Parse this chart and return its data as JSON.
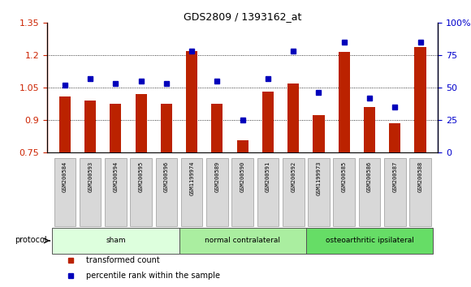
{
  "title": "GDS2809 / 1393162_at",
  "samples": [
    "GSM200584",
    "GSM200593",
    "GSM200594",
    "GSM200595",
    "GSM200596",
    "GSM1199974",
    "GSM200589",
    "GSM200590",
    "GSM200591",
    "GSM200592",
    "GSM1199973",
    "GSM200585",
    "GSM200586",
    "GSM200587",
    "GSM200588"
  ],
  "transformed_count": [
    1.01,
    0.99,
    0.975,
    1.02,
    0.975,
    1.22,
    0.975,
    0.805,
    1.03,
    1.07,
    0.92,
    1.215,
    0.96,
    0.885,
    1.24
  ],
  "percentile_rank": [
    52,
    57,
    53,
    55,
    53,
    78,
    55,
    25,
    57,
    78,
    46,
    85,
    42,
    35,
    85
  ],
  "ylim_left": [
    0.75,
    1.35
  ],
  "ylim_right": [
    0,
    100
  ],
  "yticks_left": [
    0.75,
    0.9,
    1.05,
    1.2,
    1.35
  ],
  "yticks_right": [
    0,
    25,
    50,
    75,
    100
  ],
  "ytick_labels_right": [
    "0",
    "25",
    "50",
    "75",
    "100%"
  ],
  "bar_color": "#bb2200",
  "dot_color": "#0000bb",
  "groups": [
    {
      "label": "sham",
      "start": 0,
      "end": 5,
      "color": "#ddffdd"
    },
    {
      "label": "normal contralateral",
      "start": 5,
      "end": 10,
      "color": "#aaeea0"
    },
    {
      "label": "osteoarthritic ipsilateral",
      "start": 10,
      "end": 15,
      "color": "#66dd66"
    }
  ],
  "protocol_label": "protocol",
  "legend_items": [
    {
      "color": "#bb2200",
      "label": "transformed count",
      "marker": "s"
    },
    {
      "color": "#0000bb",
      "label": "percentile rank within the sample",
      "marker": "s"
    }
  ],
  "dotted_grid_values": [
    0.9,
    1.05,
    1.2
  ],
  "axis_left_color": "#cc2200",
  "axis_right_color": "#0000cc"
}
